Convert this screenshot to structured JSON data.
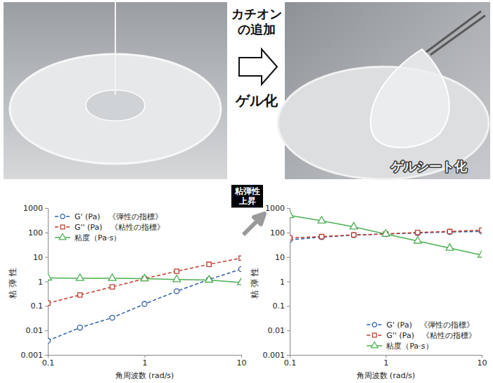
{
  "figure": {
    "cation_label": "カチオンの追加",
    "gel_label": "ゲル化",
    "sheet_label": "ゲルシート化",
    "increase_label": "粘弾性上昇"
  },
  "chart_data": [
    {
      "type": "line",
      "xlabel": "角周波数 (rad/s)",
      "ylabel": "粘弾性",
      "x": [
        0.1,
        0.215,
        0.464,
        1,
        2.15,
        4.64,
        10
      ],
      "xlim": [
        0.1,
        10
      ],
      "xticks": [
        0.1,
        1,
        10
      ],
      "ylim": [
        0.001,
        1000
      ],
      "yticks": [
        0.001,
        0.01,
        0.1,
        1,
        10,
        100,
        1000
      ],
      "log": true,
      "grid": false,
      "legend": "upper left",
      "series": [
        {
          "name": "G' (Pa)　《弾性の指標》",
          "color": "#2f5fa7",
          "marker": "circle",
          "line_style": "dashed",
          "values": [
            0.0038,
            0.013,
            0.033,
            0.12,
            0.4,
            1.2,
            3.2
          ]
        },
        {
          "name": "G'' (Pa)　《粘性の指標》",
          "color": "#c0392b",
          "marker": "square",
          "line_style": "dashed",
          "values": [
            0.13,
            0.28,
            0.6,
            1.3,
            2.6,
            5,
            9
          ]
        },
        {
          "name": "粘度（Pa·s）",
          "color": "#4caf50",
          "marker": "triangle",
          "line_style": "solid",
          "values": [
            1.4,
            1.35,
            1.35,
            1.3,
            1.2,
            1.15,
            0.9
          ]
        }
      ]
    },
    {
      "type": "line",
      "xlabel": "角周波数 (rad/s)",
      "ylabel": "粘弾性",
      "x": [
        0.1,
        0.215,
        0.464,
        1,
        2.15,
        4.64,
        10
      ],
      "xlim": [
        0.1,
        10
      ],
      "xticks": [
        0.1,
        1,
        10
      ],
      "ylim": [
        0.001,
        1000
      ],
      "yticks": [
        0.001,
        0.01,
        0.1,
        1,
        10,
        100,
        1000
      ],
      "log": true,
      "grid": false,
      "legend": "lower right",
      "series": [
        {
          "name": "G' (Pa)　《弾性の指標》",
          "color": "#2f5fa7",
          "marker": "circle",
          "line_style": "dashed",
          "values": [
            50,
            65,
            78,
            87,
            95,
            105,
            110
          ]
        },
        {
          "name": "G'' (Pa)　《粘性の指標》",
          "color": "#c0392b",
          "marker": "square",
          "line_style": "dashed",
          "values": [
            60,
            68,
            80,
            87,
            100,
            110,
            125
          ]
        },
        {
          "name": "粘度（Pa·s）",
          "color": "#4caf50",
          "marker": "triangle",
          "line_style": "solid",
          "values": [
            500,
            300,
            170,
            87,
            45,
            23,
            12
          ]
        }
      ]
    }
  ]
}
